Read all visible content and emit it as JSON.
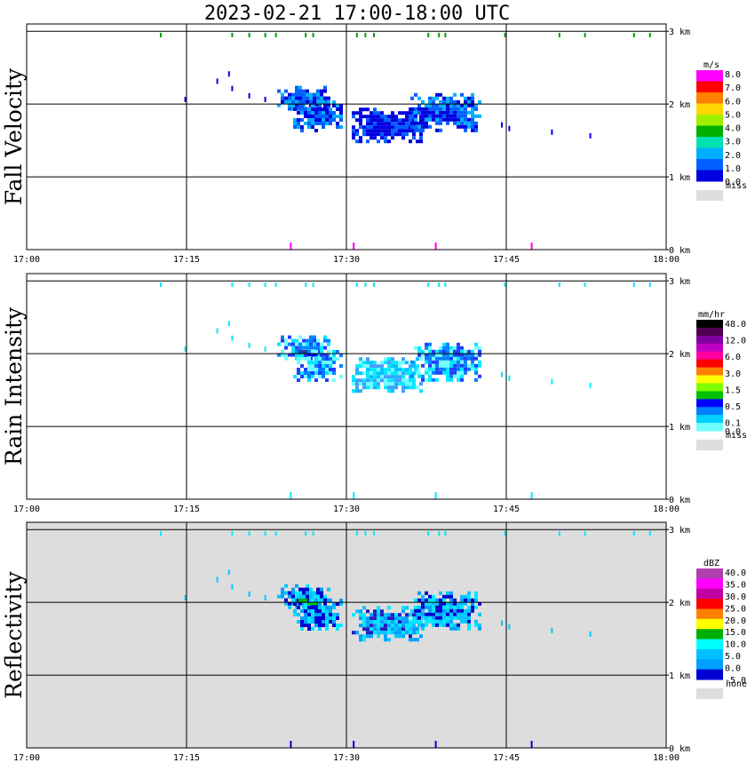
{
  "title": "2023-02-21   17:00-18:00 UTC",
  "chart_data": [
    {
      "type": "heatmap",
      "name": "fall-velocity",
      "ylabel": "Fall Velocity",
      "xticks": [
        "17:00",
        "17:15",
        "17:30",
        "17:45",
        "18:00"
      ],
      "yticks": [
        "0 km",
        "1 km",
        "2 km",
        "3 km"
      ],
      "xlim_minutes": [
        0,
        60
      ],
      "ylim_km": [
        0,
        3.1
      ],
      "units": "m/s",
      "colorbar": {
        "labels": [
          "8.0",
          "7.0",
          "6.0",
          "5.0",
          "4.0",
          "3.0",
          "2.0",
          "1.0",
          "0.0"
        ],
        "colors": [
          "#ff00ff",
          "#ff0000",
          "#ff8000",
          "#ffd700",
          "#a0f000",
          "#00b000",
          "#00e0b0",
          "#00b0ff",
          "#0060ff",
          "#0000e0"
        ],
        "missing_label": "miss",
        "missing_color": "#dddddd"
      },
      "background": "#ffffff",
      "scatter_color": "#0000e0",
      "top_marker_color": "#00a000",
      "bottom_marker_color": "#ff00ff",
      "echoes": [
        {
          "t0": 23.5,
          "t1": 28.5,
          "h0": 1.95,
          "h1": 2.25,
          "intensity": "mid"
        },
        {
          "t0": 25.0,
          "t1": 29.5,
          "h0": 1.65,
          "h1": 2.05,
          "intensity": "mid"
        },
        {
          "t0": 30.5,
          "t1": 37.0,
          "h0": 1.5,
          "h1": 1.95,
          "intensity": "low"
        },
        {
          "t0": 36.0,
          "t1": 42.5,
          "h0": 1.65,
          "h1": 2.15,
          "intensity": "mid"
        }
      ]
    },
    {
      "type": "heatmap",
      "name": "rain-intensity",
      "ylabel": "Rain Intensity",
      "xticks": [
        "17:00",
        "17:15",
        "17:30",
        "17:45",
        "18:00"
      ],
      "yticks": [
        "0 km",
        "1 km",
        "2 km",
        "3 km"
      ],
      "xlim_minutes": [
        0,
        60
      ],
      "ylim_km": [
        0,
        3.1
      ],
      "units": "mm/hr",
      "colorbar": {
        "labels": [
          "48.0",
          "",
          "12.0",
          "",
          "6.0",
          "",
          "3.0",
          "",
          "1.5",
          "",
          "0.5",
          "",
          "0.1",
          "0.0"
        ],
        "colors": [
          "#000000",
          "#500050",
          "#8000a0",
          "#c000c0",
          "#ff00a0",
          "#ff0000",
          "#ff8000",
          "#ffff00",
          "#80ff00",
          "#00c000",
          "#0000ff",
          "#0080ff",
          "#00d0ff",
          "#70ffff"
        ],
        "missing_label": "miss",
        "missing_color": "#dddddd"
      },
      "background": "#ffffff",
      "scatter_color": "#00e8ff",
      "top_marker_color": "#00e8ff",
      "bottom_marker_color": "#00e8ff",
      "echoes": [
        {
          "t0": 23.5,
          "t1": 28.5,
          "h0": 1.95,
          "h1": 2.25,
          "intensity": "mid"
        },
        {
          "t0": 25.0,
          "t1": 29.5,
          "h0": 1.65,
          "h1": 2.05,
          "intensity": "mid"
        },
        {
          "t0": 30.5,
          "t1": 37.0,
          "h0": 1.5,
          "h1": 1.95,
          "intensity": "low"
        },
        {
          "t0": 36.0,
          "t1": 42.5,
          "h0": 1.65,
          "h1": 2.15,
          "intensity": "mid"
        }
      ]
    },
    {
      "type": "heatmap",
      "name": "reflectivity",
      "ylabel": "Reflectivity",
      "xticks": [
        "17:00",
        "17:15",
        "17:30",
        "17:45",
        "18:00"
      ],
      "yticks": [
        "0 km",
        "1 km",
        "2 km",
        "3 km"
      ],
      "xlim_minutes": [
        0,
        60
      ],
      "ylim_km": [
        0,
        3.1
      ],
      "units": "dBZ",
      "colorbar": {
        "labels": [
          "40.0",
          "35.0",
          "30.0",
          "25.0",
          "20.0",
          "15.0",
          "10.0",
          "5.0",
          "0.0",
          "-5.0"
        ],
        "colors": [
          "#b040b0",
          "#ff00ff",
          "#c000a0",
          "#ff0000",
          "#ff8000",
          "#ffff00",
          "#00b000",
          "#00ffff",
          "#00c0ff",
          "#00a0ff",
          "#0000d0"
        ],
        "missing_label": "none",
        "missing_color": "#dddddd"
      },
      "background": "#dddddd",
      "scatter_color": "#00c8ff",
      "top_marker_color": "#00e8ff",
      "bottom_marker_color": "#0000d0",
      "echoes": [
        {
          "t0": 23.5,
          "t1": 28.5,
          "h0": 1.95,
          "h1": 2.25,
          "intensity": "mid"
        },
        {
          "t0": 25.0,
          "t1": 29.5,
          "h0": 1.65,
          "h1": 2.05,
          "intensity": "mid"
        },
        {
          "t0": 30.5,
          "t1": 37.0,
          "h0": 1.5,
          "h1": 1.95,
          "intensity": "low"
        },
        {
          "t0": 36.0,
          "t1": 42.5,
          "h0": 1.65,
          "h1": 2.15,
          "intensity": "mid"
        }
      ]
    }
  ]
}
